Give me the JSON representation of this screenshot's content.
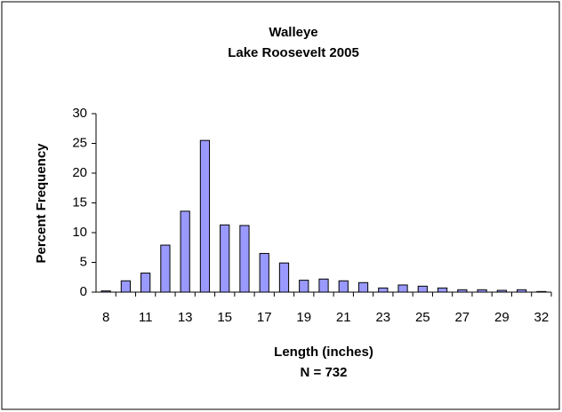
{
  "chart_data": {
    "type": "bar",
    "title": "Walleye",
    "subtitle": "Lake Roosevelt 2005",
    "y_label": "Percent Frequency",
    "x_label": "Length (inches)",
    "annotation": "N = 732",
    "categories": [
      "8",
      null,
      "11",
      null,
      "13",
      null,
      "15",
      null,
      "17",
      null,
      "19",
      null,
      "21",
      null,
      "23",
      null,
      "25",
      null,
      "27",
      null,
      "29",
      null,
      "32"
    ],
    "values": [
      0.2,
      1.9,
      3.2,
      7.9,
      13.6,
      25.5,
      11.3,
      11.2,
      6.5,
      4.9,
      2.0,
      2.2,
      1.9,
      1.6,
      0.7,
      1.2,
      1.0,
      0.7,
      0.4,
      0.4,
      0.3,
      0.4,
      0.1
    ],
    "color": "#9999ff",
    "ylim": [
      0,
      30
    ],
    "yticks": [
      0,
      5,
      10,
      15,
      20,
      25,
      30
    ],
    "grid": false
  }
}
